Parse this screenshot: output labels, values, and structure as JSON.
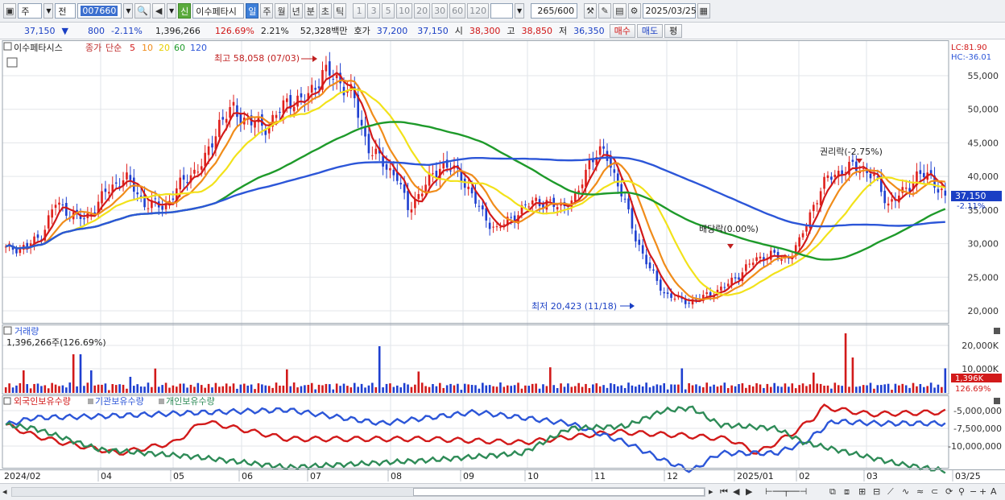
{
  "toolbar": {
    "type": "주",
    "prev": "전",
    "code": "007660",
    "name": "이수페타시",
    "sin": "신",
    "periods": [
      "일",
      "주",
      "월",
      "년",
      "분",
      "초",
      "틱"
    ],
    "numbers": [
      "1",
      "3",
      "5",
      "10",
      "20",
      "30",
      "60",
      "120"
    ],
    "count": "265",
    "max": "/600",
    "date": "2025/03/25"
  },
  "quote": {
    "price": "37,150",
    "arrow": "▼",
    "change": "800",
    "pct": "-2.11%",
    "volume": "1,396,266",
    "vol_ratio": "126.69%",
    "turnover": "2.21%",
    "amount": "52,328백만",
    "ask_label": "호가",
    "ask": "37,200",
    "bid": "37,150",
    "open_label": "시",
    "open": "38,300",
    "high_label": "고",
    "high": "38,850",
    "low_label": "저",
    "low": "36,350",
    "buy": "매수",
    "sell": "매도",
    "eval": "평"
  },
  "price_panel": {
    "name": "이수페타시스",
    "close_label": "종가",
    "simple_label": "단순",
    "ma_periods": [
      "5",
      "10",
      "20",
      "60",
      "120"
    ],
    "ma_colors": [
      "#d21a1a",
      "#f08c1a",
      "#f2e21a",
      "#1e9a2a",
      "#2c56d8"
    ],
    "lc": "LC:81.90",
    "hc": "HC:-36.01",
    "max_label": "최고 58,058 (07/03)",
    "min_label": "최저 20,423 (11/18)",
    "div_label": "배당락(0.00%)",
    "rights_label": "권리락(-2.75%)",
    "last_price": "37,150",
    "last_pct": "-2.11%",
    "y_ticks": [
      "55,000",
      "50,000",
      "45,000",
      "40,000",
      "35,000",
      "30,000",
      "25,000",
      "20,000"
    ]
  },
  "volume_panel": {
    "title": "거래량",
    "value": "1,396,266주(126.69%)",
    "y_ticks": [
      "20,000K",
      "10,000K"
    ],
    "last_value": "1,396K",
    "last_pct": "126.69%"
  },
  "holding_panel": {
    "series": [
      "외국인보유수량",
      "기관보유수량",
      "개인보유수량"
    ],
    "colors": [
      "#d21a1a",
      "#2c56d8",
      "#2e8b57"
    ],
    "y_ticks": [
      "-5,000,000",
      "-7,500,000",
      "-10,000,000"
    ]
  },
  "x_axis": {
    "labels": [
      "2024/02",
      "04",
      "05",
      "06",
      "07",
      "08",
      "09",
      "10",
      "11",
      "12",
      "2025/01",
      "02",
      "03",
      "03/25"
    ]
  },
  "chart_data": {
    "type": "candlestick",
    "x_labels": [
      "2024/02",
      "04",
      "05",
      "06",
      "07",
      "08",
      "09",
      "10",
      "11",
      "12",
      "2025/01",
      "02",
      "03"
    ],
    "key_points": [
      {
        "label": "최고",
        "date": "07/03",
        "price": 58058
      },
      {
        "label": "최저",
        "date": "11/18",
        "price": 20423
      }
    ],
    "last": {
      "close": 37150,
      "open": 38300,
      "high": 38850,
      "low": 36350,
      "change_pct": -2.11
    },
    "y_range": [
      19000,
      58500
    ]
  }
}
